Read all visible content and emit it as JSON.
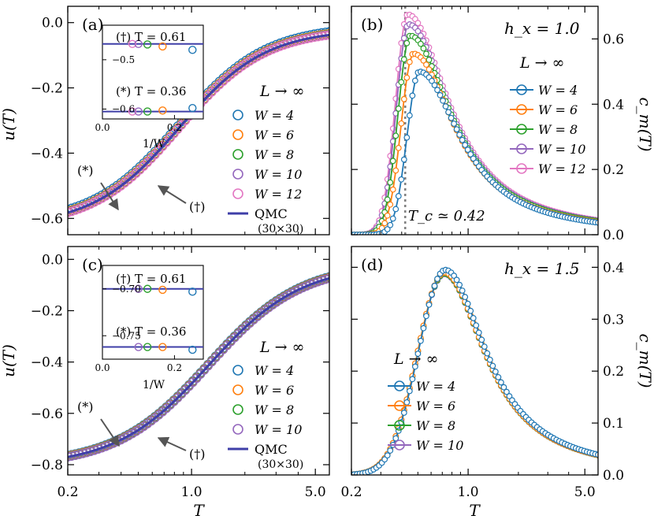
{
  "colors": {
    "W4": "#1f77b4",
    "W6": "#ff7f0e",
    "W8": "#2ca02c",
    "W10": "#9467bd",
    "W12": "#e377c2",
    "QMC": "#3f3fa8",
    "Tc_line": "#808080"
  },
  "figure": {
    "xlabel": "T",
    "x_ticks": [
      "0.2",
      "1.0",
      "5.0"
    ],
    "legend_header": "L → ∞",
    "qmc_label": "QMC",
    "qmc_size": "(30×30)",
    "star_label": "(*)",
    "dagger_label": "(†)"
  },
  "chart_data": [
    {
      "type": "line",
      "panel": "(a)",
      "title": "",
      "xlabel": "T",
      "ylabel": "u(T)",
      "xscale": "log",
      "xlim": [
        0.2,
        6.0
      ],
      "ylim": [
        -0.65,
        0.05
      ],
      "y_ticks": [
        "0.0",
        "−0.2",
        "−0.4",
        "−0.6"
      ],
      "legend_title": "L → ∞",
      "legend": [
        "W = 4",
        "W = 6",
        "W = 8",
        "W = 10",
        "W = 12",
        "QMC (30×30)"
      ],
      "series": [
        {
          "name": "W = 4",
          "u0": -0.625,
          "u1": -0.02,
          "Tm": 0.85,
          "s": 0.56,
          "shift": 0.01
        },
        {
          "name": "W = 6",
          "u0": -0.625,
          "u1": -0.02,
          "Tm": 0.85,
          "s": 0.56,
          "shift": 0.004
        },
        {
          "name": "W = 8",
          "u0": -0.625,
          "u1": -0.02,
          "Tm": 0.85,
          "s": 0.56,
          "shift": 0.002
        },
        {
          "name": "W = 10",
          "u0": -0.625,
          "u1": -0.02,
          "Tm": 0.85,
          "s": 0.56,
          "shift": 0.001
        },
        {
          "name": "W = 12",
          "u0": -0.625,
          "u1": -0.02,
          "Tm": 0.85,
          "s": 0.56,
          "shift": 0.0
        },
        {
          "name": "QMC (30×30)",
          "u0": -0.625,
          "u1": -0.02,
          "Tm": 0.85,
          "s": 0.56,
          "shift": 0.0
        }
      ],
      "annotations": [
        "(*)",
        "(†)"
      ],
      "inset": {
        "xlabel": "1/W",
        "xlim": [
          0.0,
          0.28
        ],
        "ylim": [
          -0.62,
          -0.43
        ],
        "x_ticks": [
          "0.0",
          "0.2"
        ],
        "y_ticks": [
          "−0.5",
          "−0.6"
        ],
        "labels": [
          "(†) T = 0.61",
          "(*) T = 0.36"
        ],
        "qmc_levels": [
          -0.468,
          -0.605
        ],
        "points": [
          {
            "x": 0.083,
            "y": [
              -0.468,
              -0.605
            ],
            "series": "W = 12"
          },
          {
            "x": 0.1,
            "y": [
              -0.468,
              -0.605
            ],
            "series": "W = 10"
          },
          {
            "x": 0.125,
            "y": [
              -0.469,
              -0.605
            ],
            "series": "W = 8"
          },
          {
            "x": 0.167,
            "y": [
              -0.473,
              -0.603
            ],
            "series": "W = 6"
          },
          {
            "x": 0.25,
            "y": [
              -0.48,
              -0.598
            ],
            "series": "W = 4"
          }
        ]
      }
    },
    {
      "type": "line",
      "panel": "(b)",
      "field": "h_x = 1.0",
      "xlabel": "T",
      "ylabel": "c_m(T)",
      "xscale": "log",
      "xlim": [
        0.2,
        6.0
      ],
      "ylim": [
        0.0,
        0.7
      ],
      "y_ticks": [
        "0.0",
        "0.2",
        "0.4",
        "0.6"
      ],
      "Tc_label": "T_c ≃ 0.42",
      "Tc": 0.42,
      "legend_title": "L → ∞",
      "legend": [
        "W = 4",
        "W = 6",
        "W = 8",
        "W = 10",
        "W = 12"
      ],
      "series": [
        {
          "name": "W = 4",
          "Tp": 0.51,
          "peak": 0.5
        },
        {
          "name": "W = 6",
          "Tp": 0.47,
          "peak": 0.555
        },
        {
          "name": "W = 8",
          "Tp": 0.45,
          "peak": 0.61
        },
        {
          "name": "W = 10",
          "Tp": 0.44,
          "peak": 0.645
        },
        {
          "name": "W = 12",
          "Tp": 0.435,
          "peak": 0.675
        }
      ]
    },
    {
      "type": "line",
      "panel": "(c)",
      "title": "",
      "xlabel": "T",
      "ylabel": "u(T)",
      "xscale": "log",
      "xlim": [
        0.2,
        6.0
      ],
      "ylim": [
        -0.84,
        0.05
      ],
      "y_ticks": [
        "0.0",
        "−0.2",
        "−0.4",
        "−0.6",
        "−0.8"
      ],
      "legend_title": "L → ∞",
      "legend": [
        "W = 4",
        "W = 6",
        "W = 8",
        "W = 10",
        "QMC (30×30)"
      ],
      "series": [
        {
          "name": "W = 4",
          "u0": -0.805,
          "u1": -0.02,
          "Tm": 1.25,
          "s": 0.6,
          "shift": 0.006
        },
        {
          "name": "W = 6",
          "u0": -0.805,
          "u1": -0.02,
          "Tm": 1.25,
          "s": 0.6,
          "shift": 0.003
        },
        {
          "name": "W = 8",
          "u0": -0.805,
          "u1": -0.02,
          "Tm": 1.25,
          "s": 0.6,
          "shift": 0.001
        },
        {
          "name": "W = 10",
          "u0": -0.805,
          "u1": -0.02,
          "Tm": 1.25,
          "s": 0.6,
          "shift": 0.0
        },
        {
          "name": "QMC (30×30)",
          "u0": -0.805,
          "u1": -0.02,
          "Tm": 1.25,
          "s": 0.6,
          "shift": 0.0
        }
      ],
      "annotations": [
        "(*)",
        "(†)"
      ],
      "inset": {
        "xlabel": "1/W",
        "xlim": [
          0.0,
          0.28
        ],
        "ylim": [
          -0.775,
          -0.675
        ],
        "x_ticks": [
          "0.0",
          "0.2"
        ],
        "y_ticks": [
          "−0.70",
          "−0.75"
        ],
        "labels": [
          "(†) T = 0.61",
          "(*) T = 0.36"
        ],
        "qmc_levels": [
          -0.7,
          -0.762
        ],
        "points": [
          {
            "x": 0.1,
            "y": [
              -0.7,
              -0.762
            ],
            "series": "W = 10"
          },
          {
            "x": 0.125,
            "y": [
              -0.7,
              -0.762
            ],
            "series": "W = 8"
          },
          {
            "x": 0.167,
            "y": [
              -0.701,
              -0.762
            ],
            "series": "W = 6"
          },
          {
            "x": 0.25,
            "y": [
              -0.703,
              -0.765
            ],
            "series": "W = 4"
          }
        ]
      }
    },
    {
      "type": "line",
      "panel": "(d)",
      "field": "h_x = 1.5",
      "xlabel": "T",
      "ylabel": "c_m(T)",
      "xscale": "log",
      "xlim": [
        0.2,
        6.0
      ],
      "ylim": [
        0.0,
        0.44
      ],
      "y_ticks": [
        "0.0",
        "0.1",
        "0.2",
        "0.3",
        "0.4"
      ],
      "legend_title": "L → ∞",
      "legend": [
        "W = 4",
        "W = 6",
        "W = 8",
        "W = 10"
      ],
      "series": [
        {
          "name": "W = 4",
          "Tp": 0.73,
          "peak": 0.395
        },
        {
          "name": "W = 6",
          "Tp": 0.72,
          "peak": 0.39
        },
        {
          "name": "W = 8",
          "Tp": 0.72,
          "peak": 0.388
        },
        {
          "name": "W = 10",
          "Tp": 0.72,
          "peak": 0.387
        }
      ]
    }
  ]
}
